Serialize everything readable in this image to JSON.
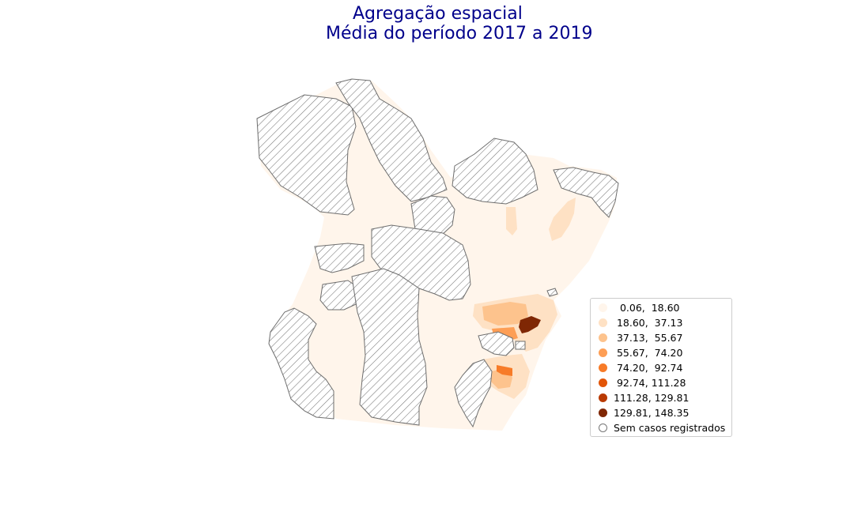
{
  "title": {
    "line1": "Agregação espacial",
    "line2": "Média do período 2017 a 2019"
  },
  "legend": {
    "items": [
      {
        "label": "  0.06,  18.60",
        "color": "#fff5eb"
      },
      {
        "label": " 18.60,  37.13",
        "color": "#fee1c4"
      },
      {
        "label": " 37.13,  55.67",
        "color": "#fdc38d"
      },
      {
        "label": " 55.67,  74.20",
        "color": "#fd9e55"
      },
      {
        "label": " 74.20,  92.74",
        "color": "#f77b28"
      },
      {
        "label": " 92.74, 111.28",
        "color": "#e25508"
      },
      {
        "label": "111.28, 129.81",
        "color": "#b93a02"
      },
      {
        "label": "129.81, 148.35",
        "color": "#7f2704"
      },
      {
        "label": "Sem casos registrados",
        "color": "#ffffff",
        "hatched": true
      }
    ]
  },
  "map_colors": {
    "base": "#fff5eb",
    "class2": "#fee1c4",
    "class3": "#fdc38d",
    "class4": "#fd9e55",
    "class5": "#f77b28",
    "class8": "#7f2704",
    "hatch_stroke": "#777777",
    "border": "#6e6e6e"
  }
}
